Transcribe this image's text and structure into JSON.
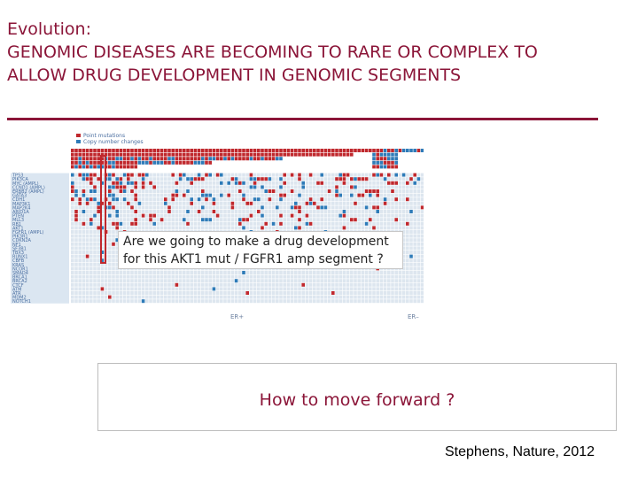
{
  "slide": {
    "title_line1": "Evolution:",
    "title_line2": "GENOMIC DISEASES ARE BECOMING TO RARE OR COMPLEX TO",
    "title_line3": "ALLOW DRUG DEVELOPMENT IN GENOMIC SEGMENTS",
    "callout_line1": "Are we going to make a drug development",
    "callout_line2": "for this AKT1 mut / FGFR1 amp segment ?",
    "forward_text": "How to move forward ?",
    "citation": "Stephens, Nature, 2012"
  },
  "figure": {
    "legend": [
      "Point mutations",
      "Copy number changes"
    ],
    "genes": [
      "TP53",
      "PIK3CA",
      "MYC (AMPL)",
      "CCND1 (AMPL)",
      "ERBB2 (AMPL)",
      "GATA3",
      "CDH1",
      "MAP3K1",
      "MAP2K4",
      "ARID1A",
      "PTEN",
      "MLL3",
      "RB1",
      "AKT1",
      "FGFR1 (AMPL)",
      "PIK3R1",
      "CDKN2A",
      "NF1",
      "SF3B1",
      "TBX3",
      "RUNX1",
      "CBFB",
      "KRAS",
      "NCOR1",
      "SMAD4",
      "BRCA1",
      "BRCA2",
      "CTCF",
      "ATM",
      "ATR",
      "MDM2",
      "NOTCH1"
    ],
    "er_labels": [
      "ER+",
      "ER–"
    ],
    "colors": {
      "mutation": "#c0282d",
      "copy_number": "#2e7bb8",
      "grid": "#dde6ef",
      "label_bg": "#dbe6f1"
    }
  }
}
